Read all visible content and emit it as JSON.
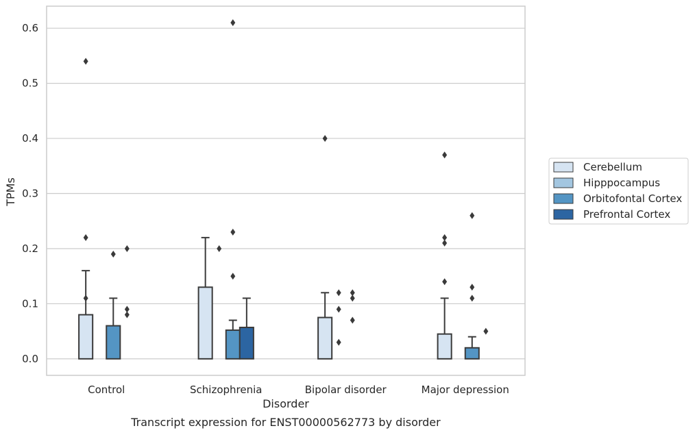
{
  "chart_data": {
    "type": "bar",
    "title": "",
    "caption": "Transcript expression for ENST00000562773 by disorder",
    "xlabel": "Disorder",
    "ylabel": "TPMs",
    "ylim": [
      -0.03,
      0.64
    ],
    "yticks": [
      "0.0",
      "0.1",
      "0.2",
      "0.3",
      "0.4",
      "0.5",
      "0.6"
    ],
    "grid": "horizontal",
    "legend_position": "right",
    "categories": [
      "Control",
      "Schizophrenia",
      "Bipolar disorder",
      "Major depression"
    ],
    "series": [
      {
        "name": "Cerebellum",
        "color": "#d6e4f2",
        "values": [
          0.08,
          0.13,
          0.075,
          0.045
        ],
        "error_upper": [
          0.16,
          0.22,
          0.12,
          0.11
        ],
        "outliers": [
          [
            0.54,
            0.22,
            0.11
          ],
          [],
          [
            0.4
          ],
          [
            0.37,
            0.22,
            0.21,
            0.14
          ]
        ]
      },
      {
        "name": "Hipppocampus",
        "color": "#a3c6e0",
        "values": [
          0.0,
          0.0,
          0.0,
          0.0
        ],
        "error_upper": [
          null,
          null,
          null,
          null
        ],
        "outliers": [
          [],
          [
            0.2
          ],
          [
            0.12,
            0.09,
            0.03
          ],
          []
        ]
      },
      {
        "name": "Orbitofontal Cortex",
        "color": "#5495c4",
        "values": [
          0.06,
          0.052,
          0.0,
          0.02
        ],
        "error_upper": [
          0.11,
          0.07,
          null,
          0.04
        ],
        "outliers": [
          [
            0.19
          ],
          [
            0.61,
            0.23,
            0.15
          ],
          [
            0.12,
            0.11,
            0.07
          ],
          [
            0.26,
            0.13,
            0.11
          ]
        ]
      },
      {
        "name": "Prefrontal Cortex",
        "color": "#2c65a2",
        "values": [
          0.0,
          0.057,
          0.0,
          0.0
        ],
        "error_upper": [
          null,
          0.11,
          null,
          null
        ],
        "outliers": [
          [
            0.2,
            0.09,
            0.08
          ],
          [],
          [],
          [
            0.05
          ]
        ]
      }
    ]
  }
}
